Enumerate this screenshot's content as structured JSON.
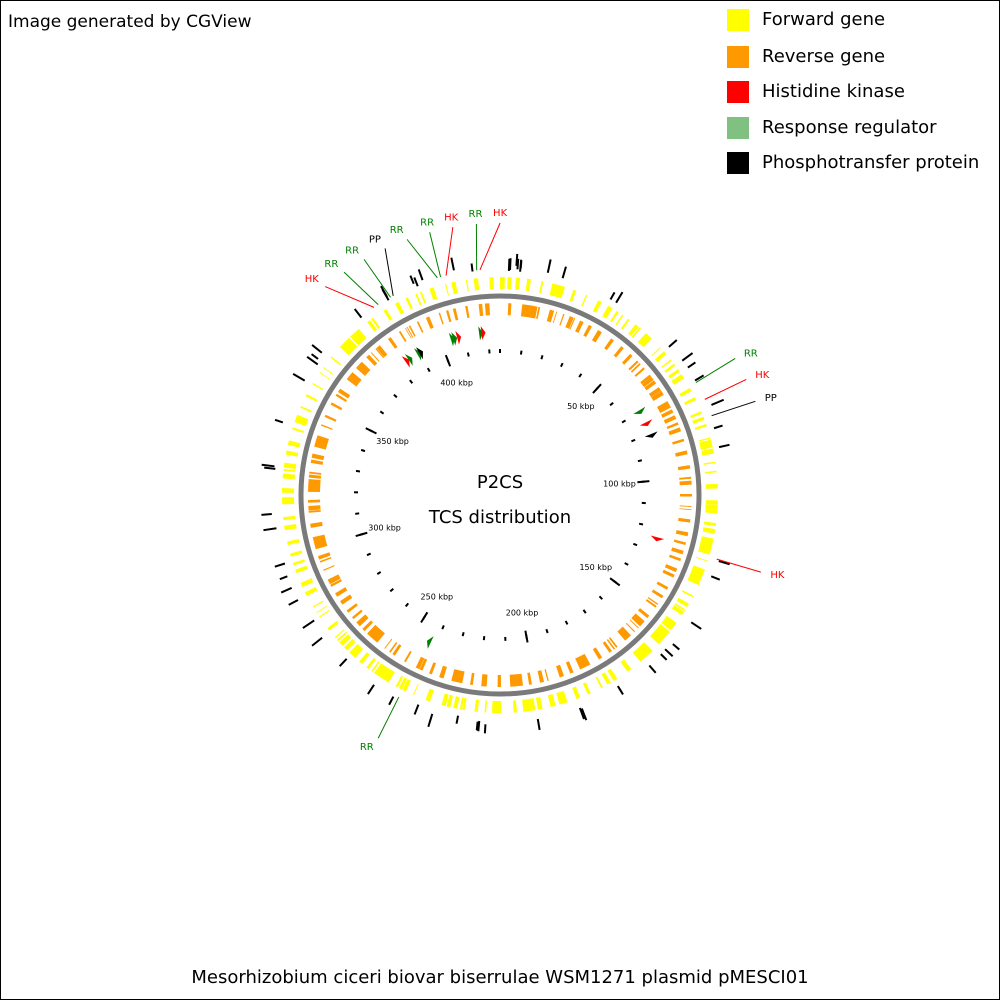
{
  "header": {
    "credit": "Image generated by CGView"
  },
  "legend": [
    {
      "label": "Forward gene",
      "color": "#ffff00"
    },
    {
      "label": "Reverse gene",
      "color": "#ff9900"
    },
    {
      "label": "Histidine kinase",
      "color": "#ff0000"
    },
    {
      "label": "Response regulator",
      "color": "#80c080"
    },
    {
      "label": "Phosphotransfer protein",
      "color": "#000000"
    }
  ],
  "center": {
    "title": "P2CS",
    "subtitle": "TCS distribution"
  },
  "map": {
    "range": [
      0,
      425
    ],
    "ticks": [
      {
        "value": 50,
        "label": "50 kbp"
      },
      {
        "value": 100,
        "label": "100 kbp"
      },
      {
        "value": 150,
        "label": "150 kbp"
      },
      {
        "value": 200,
        "label": "200 kbp"
      },
      {
        "value": 250,
        "label": "250 kbp"
      },
      {
        "value": 300,
        "label": "300 kbp"
      },
      {
        "value": 350,
        "label": "350 kbp"
      },
      {
        "value": 400,
        "label": "400 kbp"
      }
    ],
    "features": [
      {
        "label": "HK",
        "position": 385,
        "color": "#ff0000"
      },
      {
        "label": "RR",
        "position": 386.5,
        "color": "#008000"
      },
      {
        "label": "RR",
        "position": 390.8,
        "color": "#008000"
      },
      {
        "label": "PP",
        "position": 391.7,
        "color": "#000000"
      },
      {
        "label": "RR",
        "position": 406,
        "color": "#008000"
      },
      {
        "label": "RR",
        "position": 407,
        "color": "#008000"
      },
      {
        "label": "HK",
        "position": 408.7,
        "color": "#ff0000"
      },
      {
        "label": "RR",
        "position": 418,
        "color": "#008000"
      },
      {
        "label": "HK",
        "position": 419,
        "color": "#ff0000"
      },
      {
        "label": "RR",
        "position": 71,
        "color": "#008000"
      },
      {
        "label": "HK",
        "position": 76.7,
        "color": "#ff0000"
      },
      {
        "label": "PP",
        "position": 82,
        "color": "#000000"
      },
      {
        "label": "HK",
        "position": 125.7,
        "color": "#ff0000"
      },
      {
        "label": "RR",
        "position": 243.9,
        "color": "#008000"
      }
    ]
  },
  "footer": {
    "title": "Mesorhizobium ciceri biovar biserrulae WSM1271 plasmid pMESCI01"
  }
}
